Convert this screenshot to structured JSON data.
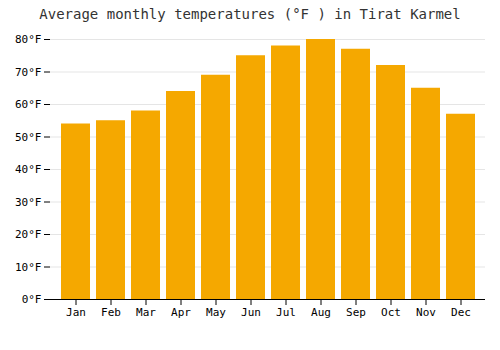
{
  "chart_data": {
    "type": "bar",
    "title": "Average monthly temperatures (°F ) in Tirat Karmel",
    "categories": [
      "Jan",
      "Feb",
      "Mar",
      "Apr",
      "May",
      "Jun",
      "Jul",
      "Aug",
      "Sep",
      "Oct",
      "Nov",
      "Dec"
    ],
    "values": [
      54,
      55,
      58,
      64,
      69,
      75,
      78,
      80,
      77,
      72,
      65,
      57
    ],
    "color": "#F5A800",
    "ylim": [
      0,
      80
    ],
    "yticks": [
      {
        "value": 0,
        "label": "0°F"
      },
      {
        "value": 10,
        "label": "10°F"
      },
      {
        "value": 20,
        "label": "20°F"
      },
      {
        "value": 30,
        "label": "30°F"
      },
      {
        "value": 40,
        "label": "40°F"
      },
      {
        "value": 50,
        "label": "50°F"
      },
      {
        "value": 60,
        "label": "60°F"
      },
      {
        "value": 70,
        "label": "70°F"
      },
      {
        "value": 80,
        "label": "80°F"
      }
    ],
    "grid": true
  }
}
